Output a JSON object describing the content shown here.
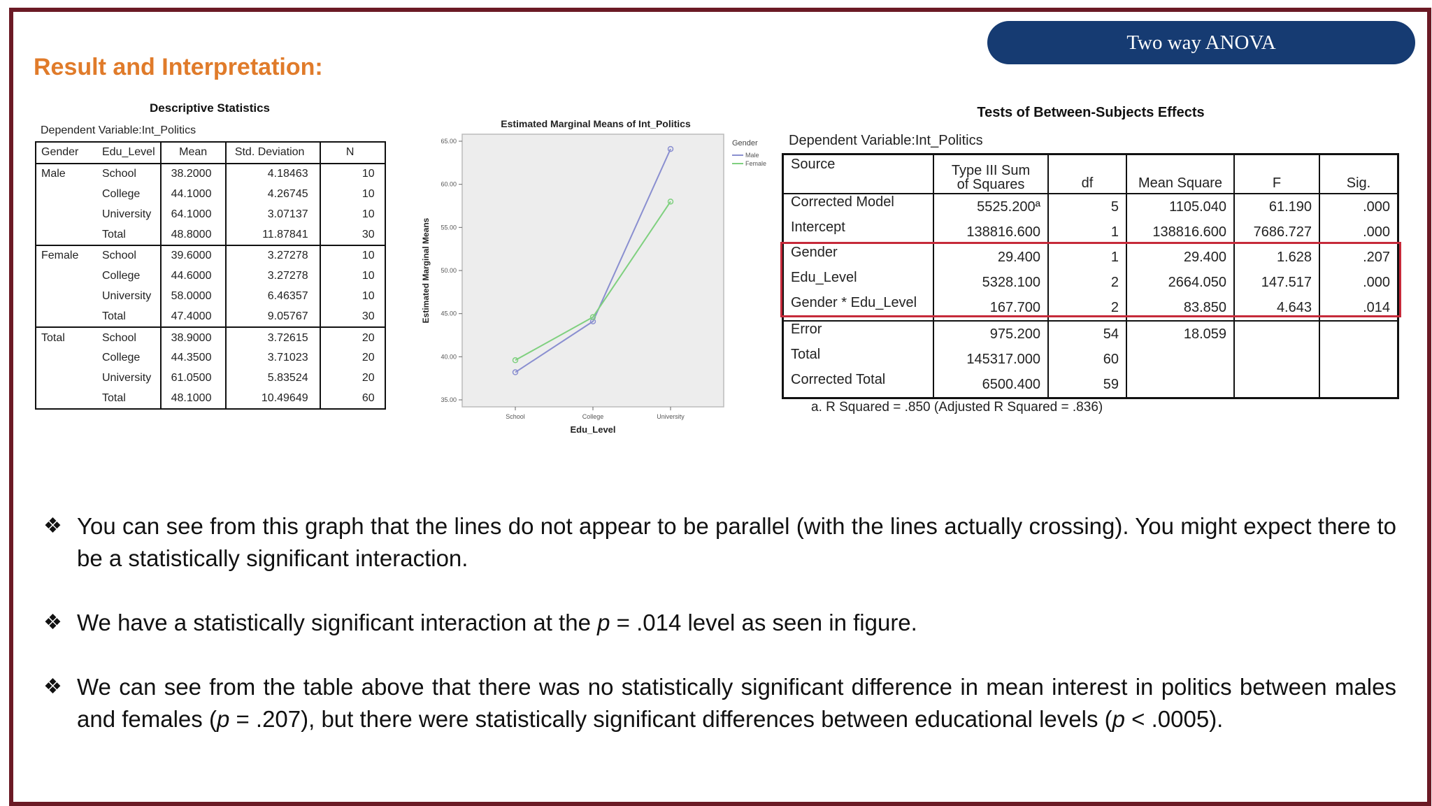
{
  "badge": "Two way ANOVA",
  "heading": "Result and Interpretation:",
  "descriptive": {
    "title": "Descriptive Statistics",
    "dependent": "Dependent Variable:Int_Politics",
    "headers": [
      "Gender",
      "Edu_Level",
      "Mean",
      "Std. Deviation",
      "N"
    ],
    "rows": [
      [
        "Male",
        "School",
        "38.2000",
        "4.18463",
        "10"
      ],
      [
        "",
        "College",
        "44.1000",
        "4.26745",
        "10"
      ],
      [
        "",
        "University",
        "64.1000",
        "3.07137",
        "10"
      ],
      [
        "",
        "Total",
        "48.8000",
        "11.87841",
        "30"
      ],
      [
        "Female",
        "School",
        "39.6000",
        "3.27278",
        "10"
      ],
      [
        "",
        "College",
        "44.6000",
        "3.27278",
        "10"
      ],
      [
        "",
        "University",
        "58.0000",
        "6.46357",
        "10"
      ],
      [
        "",
        "Total",
        "47.4000",
        "9.05767",
        "30"
      ],
      [
        "Total",
        "School",
        "38.9000",
        "3.72615",
        "20"
      ],
      [
        "",
        "College",
        "44.3500",
        "3.71023",
        "20"
      ],
      [
        "",
        "University",
        "61.0500",
        "5.83524",
        "20"
      ],
      [
        "",
        "Total",
        "48.1000",
        "10.49649",
        "60"
      ]
    ]
  },
  "chart_data": {
    "type": "line",
    "title": "Estimated Marginal Means of Int_Politics",
    "xlabel": "Edu_Level",
    "ylabel": "Estimated Marginal Means",
    "categories": [
      "School",
      "College",
      "University"
    ],
    "series": [
      {
        "name": "Male",
        "values": [
          38.2,
          44.1,
          64.1
        ],
        "color": "#8a8fd0"
      },
      {
        "name": "Female",
        "values": [
          39.6,
          44.6,
          58.0
        ],
        "color": "#7fd07f"
      }
    ],
    "ylim": [
      35,
      65
    ],
    "yticks": [
      "35.00",
      "40.00",
      "45.00",
      "50.00",
      "55.00",
      "60.00",
      "65.00"
    ],
    "legend": {
      "title": "Gender",
      "placement": "right"
    }
  },
  "anova": {
    "title": "Tests of Between-Subjects Effects",
    "dependent": "Dependent Variable:Int_Politics",
    "headers": {
      "source": "Source",
      "ss_line1": "Type III Sum",
      "ss_line2": "of Squares",
      "df": "df",
      "ms": "Mean Square",
      "f": "F",
      "sig": "Sig."
    },
    "rows": [
      [
        "Corrected Model",
        "5525.200ª",
        "5",
        "1105.040",
        "61.190",
        ".000"
      ],
      [
        "Intercept",
        "138816.600",
        "1",
        "138816.600",
        "7686.727",
        ".000"
      ],
      [
        "Gender",
        "29.400",
        "1",
        "29.400",
        "1.628",
        ".207"
      ],
      [
        "Edu_Level",
        "5328.100",
        "2",
        "2664.050",
        "147.517",
        ".000"
      ],
      [
        "Gender * Edu_Level",
        "167.700",
        "2",
        "83.850",
        "4.643",
        ".014"
      ],
      [
        "Error",
        "975.200",
        "54",
        "18.059",
        "",
        ""
      ],
      [
        "Total",
        "145317.000",
        "60",
        "",
        "",
        ""
      ],
      [
        "Corrected Total",
        "6500.400",
        "59",
        "",
        "",
        ""
      ]
    ],
    "footnote": "a. R Squared = .850 (Adjusted R Squared = .836)"
  },
  "bullets": {
    "b1": "You can see from this graph that the lines do not appear to be parallel (with the lines actually crossing). You might expect there to be a statistically significant interaction.",
    "b2_pre": "We have a statistically significant interaction at the ",
    "b2_p": "p",
    "b2_post": " = .014 level as seen in figure.",
    "b3_pre": "We can see from the table above that there was no statistically significant difference in mean interest in politics between males and females (",
    "b3_p1": "p",
    "b3_mid": " = .207), but there were statistically significant differences between educational levels (",
    "b3_p2": "p",
    "b3_post": " < .0005)."
  }
}
